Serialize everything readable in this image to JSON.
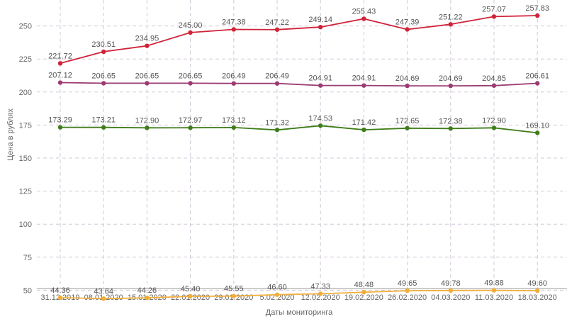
{
  "chart_data": {
    "type": "line",
    "xlabel": "Даты мониторинга",
    "ylabel": "Цена в рублях",
    "ylim": [
      25,
      275
    ],
    "yticks": [
      50,
      75,
      100,
      125,
      150,
      175,
      200,
      225,
      250,
      275
    ],
    "grid": true,
    "categories": [
      "31.12.2019",
      "08.01.2020",
      "15.01.2020",
      "22.01.2020",
      "29.01.2020",
      "5.02.2020",
      "12.02.2020",
      "19.02.2020",
      "26.02.2020",
      "04.03.2020",
      "11.03.2020",
      "18.03.2020"
    ],
    "series": [
      {
        "color": "#d0233a",
        "values": [
          221.72,
          230.51,
          234.95,
          245.0,
          247.38,
          247.22,
          249.14,
          255.43,
          247.39,
          251.22,
          257.07,
          257.83
        ],
        "labels": [
          "221.72",
          "230.51",
          "234.95",
          "245.00",
          "247.38",
          "247.22",
          "249.14",
          "255.43",
          "247.39",
          "251.22",
          "257.07",
          "257.83"
        ]
      },
      {
        "color": "#9b3b72",
        "values": [
          207.12,
          206.65,
          206.65,
          206.65,
          206.49,
          206.49,
          204.91,
          204.91,
          204.69,
          204.69,
          204.85,
          206.61
        ],
        "labels": [
          "207.12",
          "206.65",
          "206.65",
          "206.65",
          "206.49",
          "206.49",
          "204.91",
          "204.91",
          "204.69",
          "204.69",
          "204.85",
          "206.61"
        ]
      },
      {
        "color": "#3f7d1a",
        "values": [
          173.29,
          173.21,
          172.9,
          172.97,
          173.12,
          171.32,
          174.53,
          171.42,
          172.65,
          172.38,
          172.9,
          169.1
        ],
        "labels": [
          "173.29",
          "173.21",
          "172.90",
          "172.97",
          "173.12",
          "171.32",
          "174.53",
          "171.42",
          "172.65",
          "172.38",
          "172.90",
          "169.10"
        ]
      },
      {
        "color": "#f2ae3a",
        "values": [
          44.36,
          43.64,
          44.26,
          45.4,
          45.55,
          46.6,
          47.33,
          48.48,
          49.65,
          49.78,
          49.88,
          49.6
        ],
        "labels": [
          "44.36",
          "43.64",
          "44.26",
          "45.40",
          "45.55",
          "46.60",
          "47.33",
          "48.48",
          "49.65",
          "49.78",
          "49.88",
          "49.60"
        ]
      }
    ]
  }
}
